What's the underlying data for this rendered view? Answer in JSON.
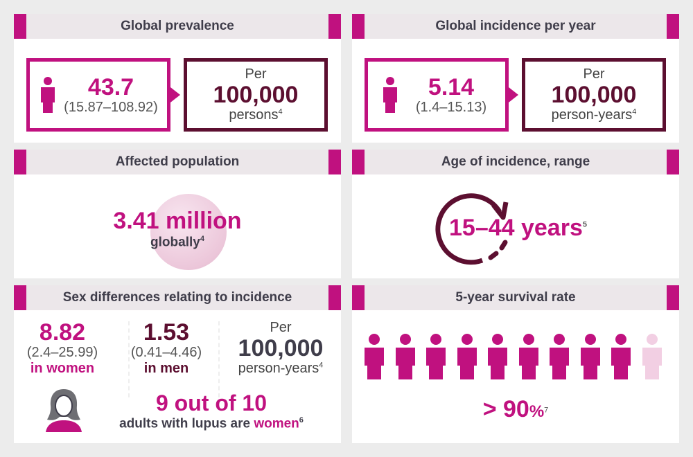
{
  "prevalence": {
    "title": "Global prevalence",
    "value": "43.7",
    "range": "(15.87–108.92)",
    "per": "Per",
    "base": "100,000",
    "unit": "persons",
    "ref": "4"
  },
  "incidence": {
    "title": "Global incidence per year",
    "value": "5.14",
    "range": "(1.4–15.13)",
    "per": "Per",
    "base": "100,000",
    "unit": "person-years",
    "ref": "4"
  },
  "affected": {
    "title": "Affected population",
    "value": "3.41 million",
    "label": "globally",
    "ref": "4"
  },
  "age": {
    "title": "Age of incidence, range",
    "value": "15–44 years",
    "ref": "5"
  },
  "sex": {
    "title": "Sex differences relating to incidence",
    "women_value": "8.82",
    "women_range": "(2.4–25.99)",
    "women_label": "in women",
    "men_value": "1.53",
    "men_range": "(0.41–4.46)",
    "men_label": "in men",
    "per": "Per",
    "base": "100,000",
    "unit": "person-years",
    "ref": "4",
    "ratio": "9 out of 10",
    "ratio_text": "adults with lupus are ",
    "ratio_highlight": "women",
    "ratio_ref": "6"
  },
  "survival": {
    "title": "5-year survival rate",
    "value": "> 90",
    "pct": "%",
    "ref": "7",
    "filled": 9,
    "total": 10
  },
  "colors": {
    "magenta": "#c0117f",
    "maroon": "#5c0f30",
    "light": "#f2cfe3"
  }
}
